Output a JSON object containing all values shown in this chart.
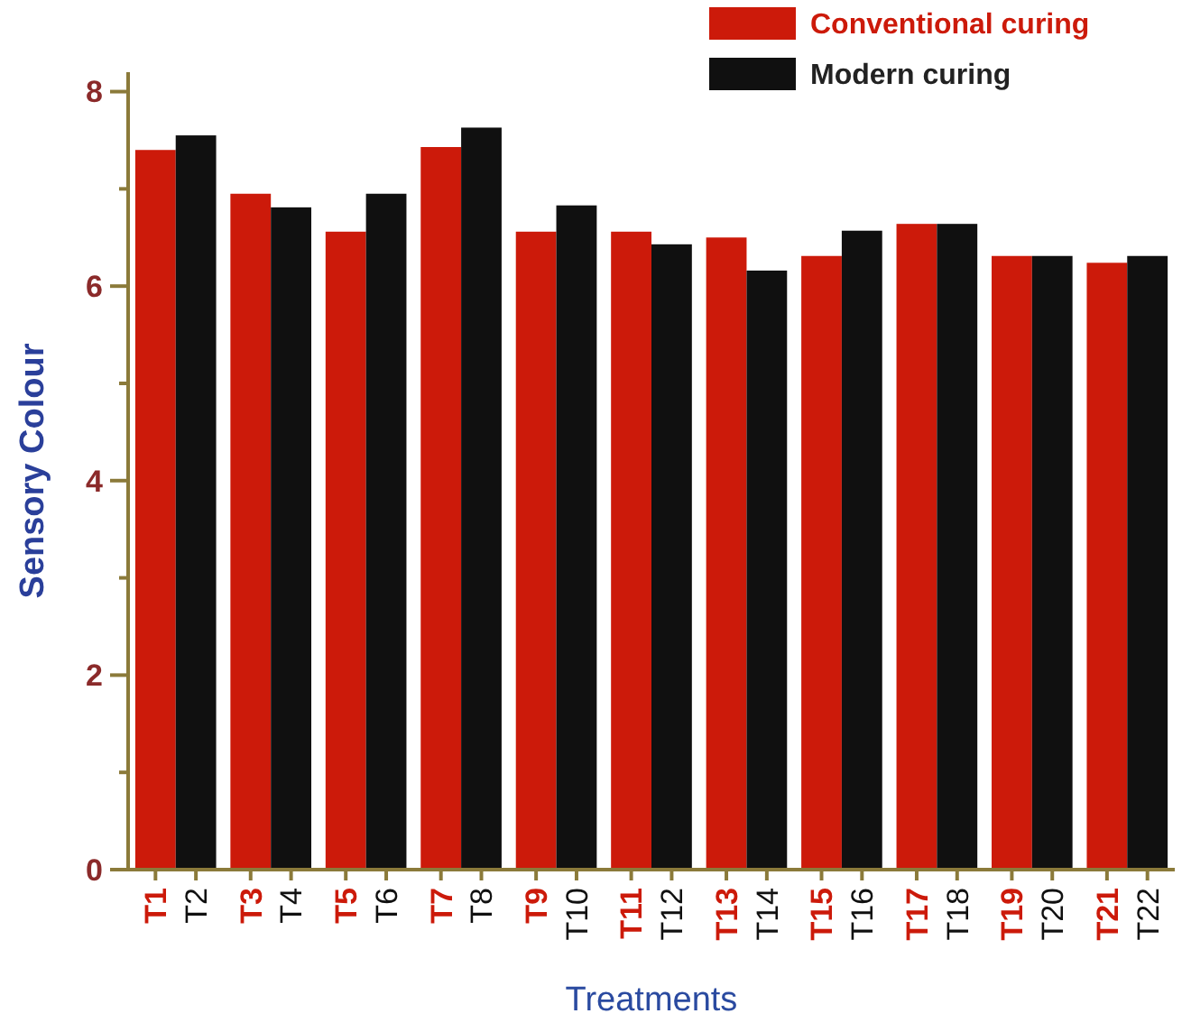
{
  "chart_data": {
    "type": "bar",
    "xlabel": "Treatments",
    "ylabel": "Sensory Colour",
    "categories": [
      "T1",
      "T2",
      "T3",
      "T4",
      "T5",
      "T6",
      "T7",
      "T8",
      "T9",
      "T10",
      "T11",
      "T12",
      "T13",
      "T14",
      "T15",
      "T16",
      "T17",
      "T18",
      "T19",
      "T20",
      "T21",
      "T22"
    ],
    "series": [
      {
        "name": "Conventional curing",
        "color": "#cc1a0a",
        "values": [
          7.4,
          null,
          6.95,
          null,
          6.56,
          null,
          7.43,
          null,
          6.56,
          null,
          6.56,
          null,
          6.5,
          null,
          6.31,
          null,
          6.64,
          null,
          6.31,
          null,
          6.24,
          null
        ]
      },
      {
        "name": "Modern curing",
        "color": "#101010",
        "values": [
          null,
          7.55,
          null,
          6.81,
          null,
          6.95,
          null,
          7.63,
          null,
          6.83,
          null,
          6.43,
          null,
          6.16,
          null,
          6.57,
          null,
          6.64,
          null,
          6.31,
          null,
          6.31
        ]
      }
    ],
    "ylim": [
      0,
      8.2
    ],
    "yticks": [
      0,
      {
        "value": 1,
        "label": null
      },
      2,
      {
        "value": 3,
        "label": null
      },
      4,
      {
        "value": 5,
        "label": null
      },
      6,
      {
        "value": 7,
        "label": null
      },
      8
    ],
    "grid": false,
    "legend": "top right"
  }
}
